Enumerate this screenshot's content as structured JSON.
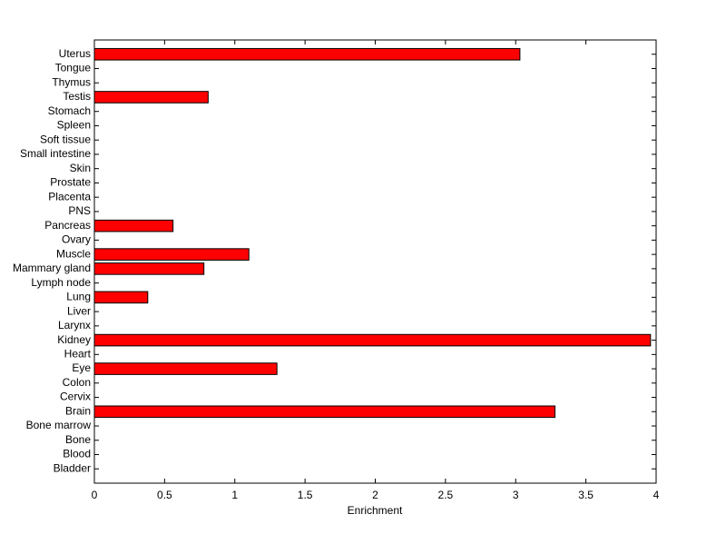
{
  "chart_data": {
    "type": "barh",
    "xlabel": "Enrichment",
    "categories": [
      "Bladder",
      "Blood",
      "Bone",
      "Bone marrow",
      "Brain",
      "Cervix",
      "Colon",
      "Eye",
      "Heart",
      "Kidney",
      "Larynx",
      "Liver",
      "Lung",
      "Lymph node",
      "Mammary gland",
      "Muscle",
      "Ovary",
      "Pancreas",
      "PNS",
      "Placenta",
      "Prostate",
      "Skin",
      "Small intestine",
      "Soft tissue",
      "Spleen",
      "Stomach",
      "Testis",
      "Thymus",
      "Tongue",
      "Uterus"
    ],
    "values": [
      0,
      0,
      0,
      0,
      3.28,
      0,
      0,
      1.3,
      0,
      3.96,
      0,
      0,
      0.38,
      0,
      0.78,
      1.1,
      0,
      0.56,
      0,
      0,
      0,
      0,
      0,
      0,
      0,
      0,
      0.81,
      0,
      0,
      3.03
    ],
    "color": "#ff0000",
    "xlim": [
      0,
      4
    ],
    "xticks": [
      0,
      0.5,
      1,
      1.5,
      2,
      2.5,
      3,
      3.5,
      4
    ]
  }
}
